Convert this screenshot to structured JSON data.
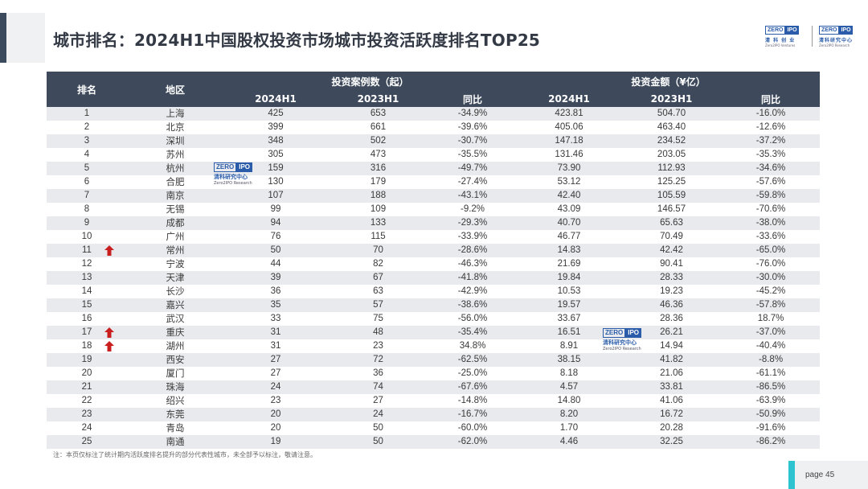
{
  "title": "城市排名：2024H1中国股权投资市场城市投资活跃度排名TOP25",
  "logo": {
    "zero": "ZERO",
    "ipo": "IPO",
    "cn_left": "清 科 创 业",
    "en_left": "Zero2IPO Ventures",
    "cn_right": "清科研究中心",
    "en_right": "Zero2IPO Research"
  },
  "inline_logo": {
    "zero": "ZERO",
    "ipo": "IPO",
    "cn": "清科研究中心",
    "en": "Zero2IPO Research"
  },
  "table": {
    "headers": {
      "rank": "排名",
      "region": "地区",
      "cases_group": "投资案例数（起）",
      "amount_group": "投资金额（¥亿）",
      "h2024": "2024H1",
      "h2023": "2023H1",
      "yoy": "同比"
    },
    "rows": [
      {
        "rank": "1",
        "city": "上海",
        "c24": "425",
        "c23": "653",
        "cy": "-34.9%",
        "a24": "423.81",
        "a23": "504.70",
        "ay": "-16.0%",
        "up": false
      },
      {
        "rank": "2",
        "city": "北京",
        "c24": "399",
        "c23": "661",
        "cy": "-39.6%",
        "a24": "405.06",
        "a23": "463.40",
        "ay": "-12.6%",
        "up": false
      },
      {
        "rank": "3",
        "city": "深圳",
        "c24": "348",
        "c23": "502",
        "cy": "-30.7%",
        "a24": "147.18",
        "a23": "234.52",
        "ay": "-37.2%",
        "up": false
      },
      {
        "rank": "4",
        "city": "苏州",
        "c24": "305",
        "c23": "473",
        "cy": "-35.5%",
        "a24": "131.46",
        "a23": "203.05",
        "ay": "-35.3%",
        "up": false
      },
      {
        "rank": "5",
        "city": "杭州",
        "c24": "159",
        "c23": "316",
        "cy": "-49.7%",
        "a24": "73.90",
        "a23": "112.93",
        "ay": "-34.6%",
        "up": false
      },
      {
        "rank": "6",
        "city": "合肥",
        "c24": "130",
        "c23": "179",
        "cy": "-27.4%",
        "a24": "53.12",
        "a23": "125.25",
        "ay": "-57.6%",
        "up": false
      },
      {
        "rank": "7",
        "city": "南京",
        "c24": "107",
        "c23": "188",
        "cy": "-43.1%",
        "a24": "42.40",
        "a23": "105.59",
        "ay": "-59.8%",
        "up": false
      },
      {
        "rank": "8",
        "city": "无锡",
        "c24": "99",
        "c23": "109",
        "cy": "-9.2%",
        "a24": "43.09",
        "a23": "146.57",
        "ay": "-70.6%",
        "up": false
      },
      {
        "rank": "9",
        "city": "成都",
        "c24": "94",
        "c23": "133",
        "cy": "-29.3%",
        "a24": "40.70",
        "a23": "65.63",
        "ay": "-38.0%",
        "up": false
      },
      {
        "rank": "10",
        "city": "广州",
        "c24": "76",
        "c23": "115",
        "cy": "-33.9%",
        "a24": "46.77",
        "a23": "70.49",
        "ay": "-33.6%",
        "up": false
      },
      {
        "rank": "11",
        "city": "常州",
        "c24": "50",
        "c23": "70",
        "cy": "-28.6%",
        "a24": "14.83",
        "a23": "42.42",
        "ay": "-65.0%",
        "up": true
      },
      {
        "rank": "12",
        "city": "宁波",
        "c24": "44",
        "c23": "82",
        "cy": "-46.3%",
        "a24": "21.69",
        "a23": "90.41",
        "ay": "-76.0%",
        "up": false
      },
      {
        "rank": "13",
        "city": "天津",
        "c24": "39",
        "c23": "67",
        "cy": "-41.8%",
        "a24": "19.84",
        "a23": "28.33",
        "ay": "-30.0%",
        "up": false
      },
      {
        "rank": "14",
        "city": "长沙",
        "c24": "36",
        "c23": "63",
        "cy": "-42.9%",
        "a24": "10.53",
        "a23": "19.23",
        "ay": "-45.2%",
        "up": false
      },
      {
        "rank": "15",
        "city": "嘉兴",
        "c24": "35",
        "c23": "57",
        "cy": "-38.6%",
        "a24": "19.57",
        "a23": "46.36",
        "ay": "-57.8%",
        "up": false
      },
      {
        "rank": "16",
        "city": "武汉",
        "c24": "33",
        "c23": "75",
        "cy": "-56.0%",
        "a24": "33.67",
        "a23": "28.36",
        "ay": "18.7%",
        "up": false
      },
      {
        "rank": "17",
        "city": "重庆",
        "c24": "31",
        "c23": "48",
        "cy": "-35.4%",
        "a24": "16.51",
        "a23": "26.21",
        "ay": "-37.0%",
        "up": true
      },
      {
        "rank": "18",
        "city": "湖州",
        "c24": "31",
        "c23": "23",
        "cy": "34.8%",
        "a24": "8.91",
        "a23": "14.94",
        "ay": "-40.4%",
        "up": true
      },
      {
        "rank": "19",
        "city": "西安",
        "c24": "27",
        "c23": "72",
        "cy": "-62.5%",
        "a24": "38.15",
        "a23": "41.82",
        "ay": "-8.8%",
        "up": false
      },
      {
        "rank": "20",
        "city": "厦门",
        "c24": "27",
        "c23": "36",
        "cy": "-25.0%",
        "a24": "8.18",
        "a23": "21.06",
        "ay": "-61.1%",
        "up": false
      },
      {
        "rank": "21",
        "city": "珠海",
        "c24": "24",
        "c23": "74",
        "cy": "-67.6%",
        "a24": "4.57",
        "a23": "33.81",
        "ay": "-86.5%",
        "up": false
      },
      {
        "rank": "22",
        "city": "绍兴",
        "c24": "23",
        "c23": "27",
        "cy": "-14.8%",
        "a24": "14.80",
        "a23": "41.06",
        "ay": "-63.9%",
        "up": false
      },
      {
        "rank": "23",
        "city": "东莞",
        "c24": "20",
        "c23": "24",
        "cy": "-16.7%",
        "a24": "8.20",
        "a23": "16.72",
        "ay": "-50.9%",
        "up": false
      },
      {
        "rank": "24",
        "city": "青岛",
        "c24": "20",
        "c23": "50",
        "cy": "-60.0%",
        "a24": "1.70",
        "a23": "20.28",
        "ay": "-91.6%",
        "up": false
      },
      {
        "rank": "25",
        "city": "南通",
        "c24": "19",
        "c23": "50",
        "cy": "-62.0%",
        "a24": "4.46",
        "a23": "32.25",
        "ay": "-86.2%",
        "up": false
      }
    ]
  },
  "note": "注：本页仅标注了统计期内活跃度排名提升的部分代表性城市，未全部予以标注，敬请注意。",
  "page": "page  45",
  "colors": {
    "header_bg": "#3e4a5c",
    "stripe": "#e8eaee",
    "arrow": "#c81e1e",
    "accent": "#2ec4cf",
    "brand_blue": "#2a5caa"
  }
}
